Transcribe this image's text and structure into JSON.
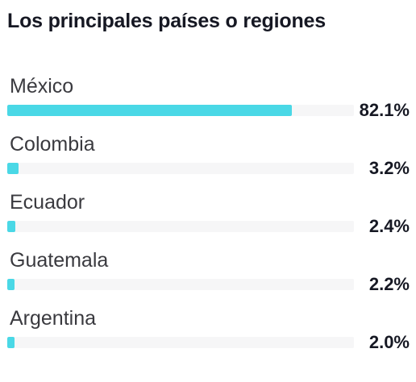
{
  "panel": {
    "title": "Los principales países o regiones"
  },
  "colors": {
    "bar_fill": "#4ad8e6",
    "bar_track": "#f6f6f7",
    "text_primary": "#161823",
    "text_label": "#3a3a3f"
  },
  "regions": [
    {
      "name": "México",
      "value_label": "82.1%",
      "percent": 82.1
    },
    {
      "name": "Colombia",
      "value_label": "3.2%",
      "percent": 3.2
    },
    {
      "name": "Ecuador",
      "value_label": "2.4%",
      "percent": 2.4
    },
    {
      "name": "Guatemala",
      "value_label": "2.2%",
      "percent": 2.2
    },
    {
      "name": "Argentina",
      "value_label": "2.0%",
      "percent": 2.0
    }
  ]
}
